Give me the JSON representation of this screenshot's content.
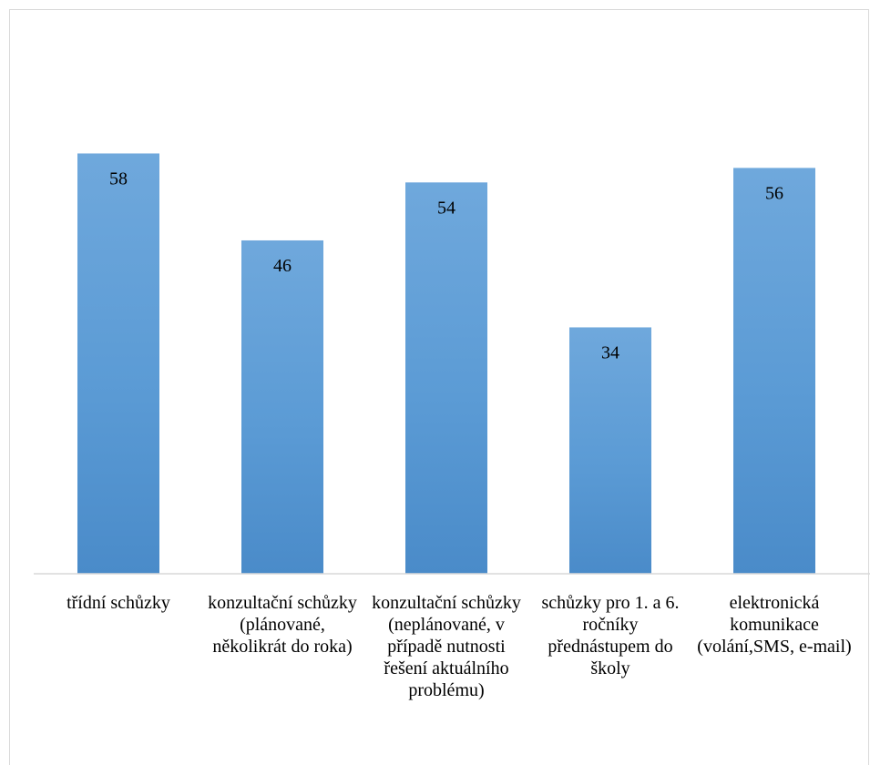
{
  "chart_data": {
    "type": "bar",
    "categories": [
      "třídní schůzky",
      "konzultační schůzky (plánované, několikrát do roka)",
      "konzultační schůzky (neplánované, v případě nutnosti řešení aktuálního problému)",
      "schůzky pro 1. a 6. ročníky přednástupem do školy",
      "elektronická komunikace (volání,SMS, e-mail)"
    ],
    "values": [
      58,
      46,
      54,
      34,
      56
    ],
    "data_labels": [
      "58",
      "46",
      "54",
      "34",
      "56"
    ],
    "ylim": [
      0,
      70
    ],
    "bar_color": "#5b9bd5",
    "bar_color_light": "#6fa8dc",
    "bar_color_dark": "#4a8bc9",
    "axis_color": "#d9d9d9",
    "grid": false,
    "legend": "none"
  }
}
